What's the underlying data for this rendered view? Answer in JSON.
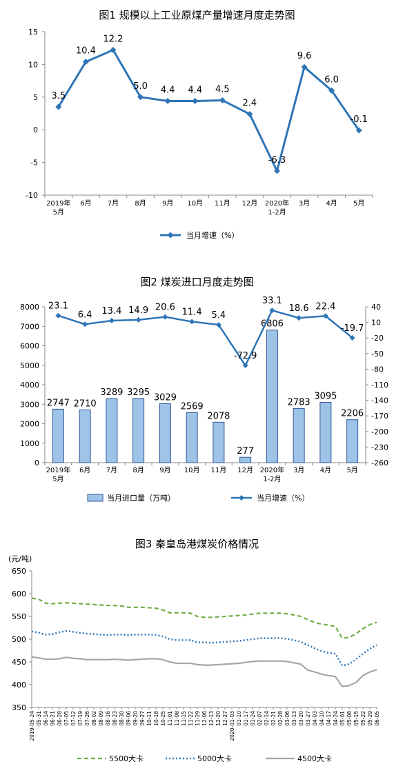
{
  "chart_data": [
    {
      "type": "line",
      "title": "图1  规模以上工业原煤产量增速月度走势图",
      "categories": [
        [
          "2019年",
          "5月"
        ],
        [
          "6月"
        ],
        [
          "7月"
        ],
        [
          "8月"
        ],
        [
          "9月"
        ],
        [
          "10月"
        ],
        [
          "11月"
        ],
        [
          "12月"
        ],
        [
          "2020年",
          "1-2月"
        ],
        [
          "3月"
        ],
        [
          "4月"
        ],
        [
          "5月"
        ]
      ],
      "series": [
        {
          "name": "当月增速（%）",
          "values": [
            3.5,
            10.4,
            12.2,
            5.0,
            4.4,
            4.4,
            4.5,
            2.4,
            -6.3,
            9.6,
            6.0,
            -0.1
          ],
          "labels": [
            "3.5",
            "10.4",
            "12.2",
            "5.0",
            "4.4",
            "4.4",
            "4.5",
            "2.4",
            "-6.3",
            "9.6",
            "6.0",
            "-0.1"
          ]
        }
      ],
      "yticks": [
        "15",
        "10",
        "5",
        "0",
        "-5",
        "-10"
      ],
      "ylim": [
        -10,
        15
      ],
      "color": "#2e75b6",
      "legend": "bottom"
    },
    {
      "type": "bar",
      "title": "图2  煤炭进口月度走势图",
      "categories": [
        [
          "2019年",
          "5月"
        ],
        [
          "6月"
        ],
        [
          "7月"
        ],
        [
          "8月"
        ],
        [
          "9月"
        ],
        [
          "10月"
        ],
        [
          "11月"
        ],
        [
          "12月"
        ],
        [
          "2020年",
          "1-2月"
        ],
        [
          "3月"
        ],
        [
          "4月"
        ],
        [
          "5月"
        ]
      ],
      "series": [
        {
          "name": "当月进口量（万吨）",
          "axis": "left",
          "values": [
            2747,
            2710,
            3289,
            3295,
            3029,
            2569,
            2078,
            277,
            6806,
            2783,
            3095,
            2206
          ],
          "labels": [
            "2747",
            "2710",
            "3289",
            "3295",
            "3029",
            "2569",
            "2078",
            "277",
            "6806",
            "2783",
            "3095",
            "2206"
          ]
        },
        {
          "name": "当月增速（%）",
          "axis": "right",
          "values": [
            23.1,
            6.4,
            13.4,
            14.9,
            20.6,
            11.4,
            5.4,
            -72.9,
            33.1,
            18.6,
            22.4,
            -19.7
          ],
          "labels": [
            "23.1",
            "6.4",
            "13.4",
            "14.9",
            "20.6",
            "11.4",
            "5.4",
            "-72.9",
            "33.1",
            "18.6",
            "22.4",
            "-19.7"
          ]
        }
      ],
      "yticks_left": [
        "8000",
        "7000",
        "6000",
        "5000",
        "4000",
        "3000",
        "2000",
        "1000",
        "0"
      ],
      "ylim_left": [
        0,
        8000
      ],
      "yticks_right": [
        "40",
        "10",
        "-20",
        "-50",
        "-80",
        "-110",
        "-140",
        "-170",
        "-200",
        "-230",
        "-260"
      ],
      "ylim_right": [
        -260,
        40
      ],
      "bar_color": "#9dc3e6",
      "line_color": "#2e75b6",
      "legend": "bottom"
    },
    {
      "type": "line",
      "title": "图3    秦皇岛港煤炭价格情况",
      "yunit": "(元/吨)",
      "yticks": [
        "650",
        "600",
        "550",
        "500",
        "450",
        "400",
        "350"
      ],
      "ylim": [
        350,
        650
      ],
      "x": [
        "2019-05-24",
        "05-31",
        "06-14",
        "06-21",
        "06-28",
        "07-05",
        "07-12",
        "07-19",
        "07-26",
        "08-02",
        "08-09",
        "08-16",
        "08-23",
        "08-30",
        "09-06",
        "09-20",
        "09-27",
        "10-11",
        "10-18",
        "10-25",
        "11-01",
        "11-08",
        "11-15",
        "11-22",
        "11-29",
        "12-06",
        "12-13",
        "12-20",
        "12-27",
        "2020-01-03",
        "01-10",
        "01-17",
        "01-24",
        "02-07",
        "02-14",
        "02-21",
        "02-28",
        "03-06",
        "03-13",
        "03-20",
        "03-27",
        "04-03",
        "04-10",
        "04-17",
        "04-24",
        "05-01",
        "05-08",
        "05-15",
        "05-22",
        "05-29",
        "06-05"
      ],
      "x_tick_labels": [
        "2019-05-24",
        "05-31",
        "06-14",
        "06-21",
        "06-28",
        "07-05",
        "07-12",
        "07-19",
        "07-26",
        "08-02",
        "08-09",
        "08-16",
        "08-23",
        "08-30",
        "09-06",
        "09-20",
        "09-27",
        "10-11",
        "10-18",
        "10-25",
        "11-01",
        "11-08",
        "11-15",
        "11-22",
        "11-29",
        "12-06",
        "12-13",
        "12-20",
        "12-27",
        "2020-01-03",
        "01-10",
        "01-17",
        "01-24",
        "02-07",
        "02-14",
        "02-21",
        "02-28",
        "03-06",
        "03-13",
        "03-20",
        "03-27",
        "04-03",
        "04-10",
        "04-17",
        "04-24",
        "05-01",
        "05-08",
        "05-15",
        "05-22",
        "05-29",
        "06-05"
      ],
      "series": [
        {
          "name": "5500大卡",
          "color": "#70ad47",
          "dash": "dashed",
          "values": [
            590,
            588,
            579,
            578,
            579,
            580,
            579,
            578,
            577,
            576,
            575,
            574,
            574,
            573,
            570,
            570,
            570,
            569,
            568,
            564,
            558,
            558,
            558,
            557,
            550,
            548,
            548,
            549,
            550,
            551,
            552,
            553,
            555,
            557,
            557,
            557,
            557,
            556,
            553,
            550,
            543,
            537,
            533,
            531,
            528,
            502,
            504,
            512,
            523,
            532,
            537
          ]
        },
        {
          "name": "5000大卡",
          "color": "#2e75b6",
          "dash": "dotted",
          "values": [
            517,
            514,
            510,
            511,
            515,
            518,
            516,
            514,
            512,
            511,
            510,
            509,
            510,
            510,
            509,
            510,
            510,
            510,
            509,
            506,
            500,
            498,
            498,
            498,
            493,
            493,
            492,
            493,
            494,
            495,
            496,
            498,
            500,
            502,
            502,
            502,
            502,
            501,
            498,
            494,
            487,
            480,
            474,
            470,
            468,
            442,
            445,
            456,
            468,
            479,
            487
          ]
        },
        {
          "name": "4500大卡",
          "color": "#a6a6a6",
          "dash": "solid",
          "values": [
            461,
            459,
            456,
            456,
            457,
            460,
            458,
            457,
            455,
            455,
            455,
            455,
            456,
            455,
            454,
            455,
            456,
            457,
            457,
            455,
            450,
            447,
            447,
            447,
            444,
            443,
            443,
            444,
            445,
            446,
            447,
            449,
            451,
            452,
            452,
            452,
            452,
            451,
            448,
            445,
            432,
            428,
            423,
            420,
            418,
            396,
            398,
            405,
            420,
            428,
            433
          ]
        }
      ],
      "legend": "bottom"
    }
  ]
}
